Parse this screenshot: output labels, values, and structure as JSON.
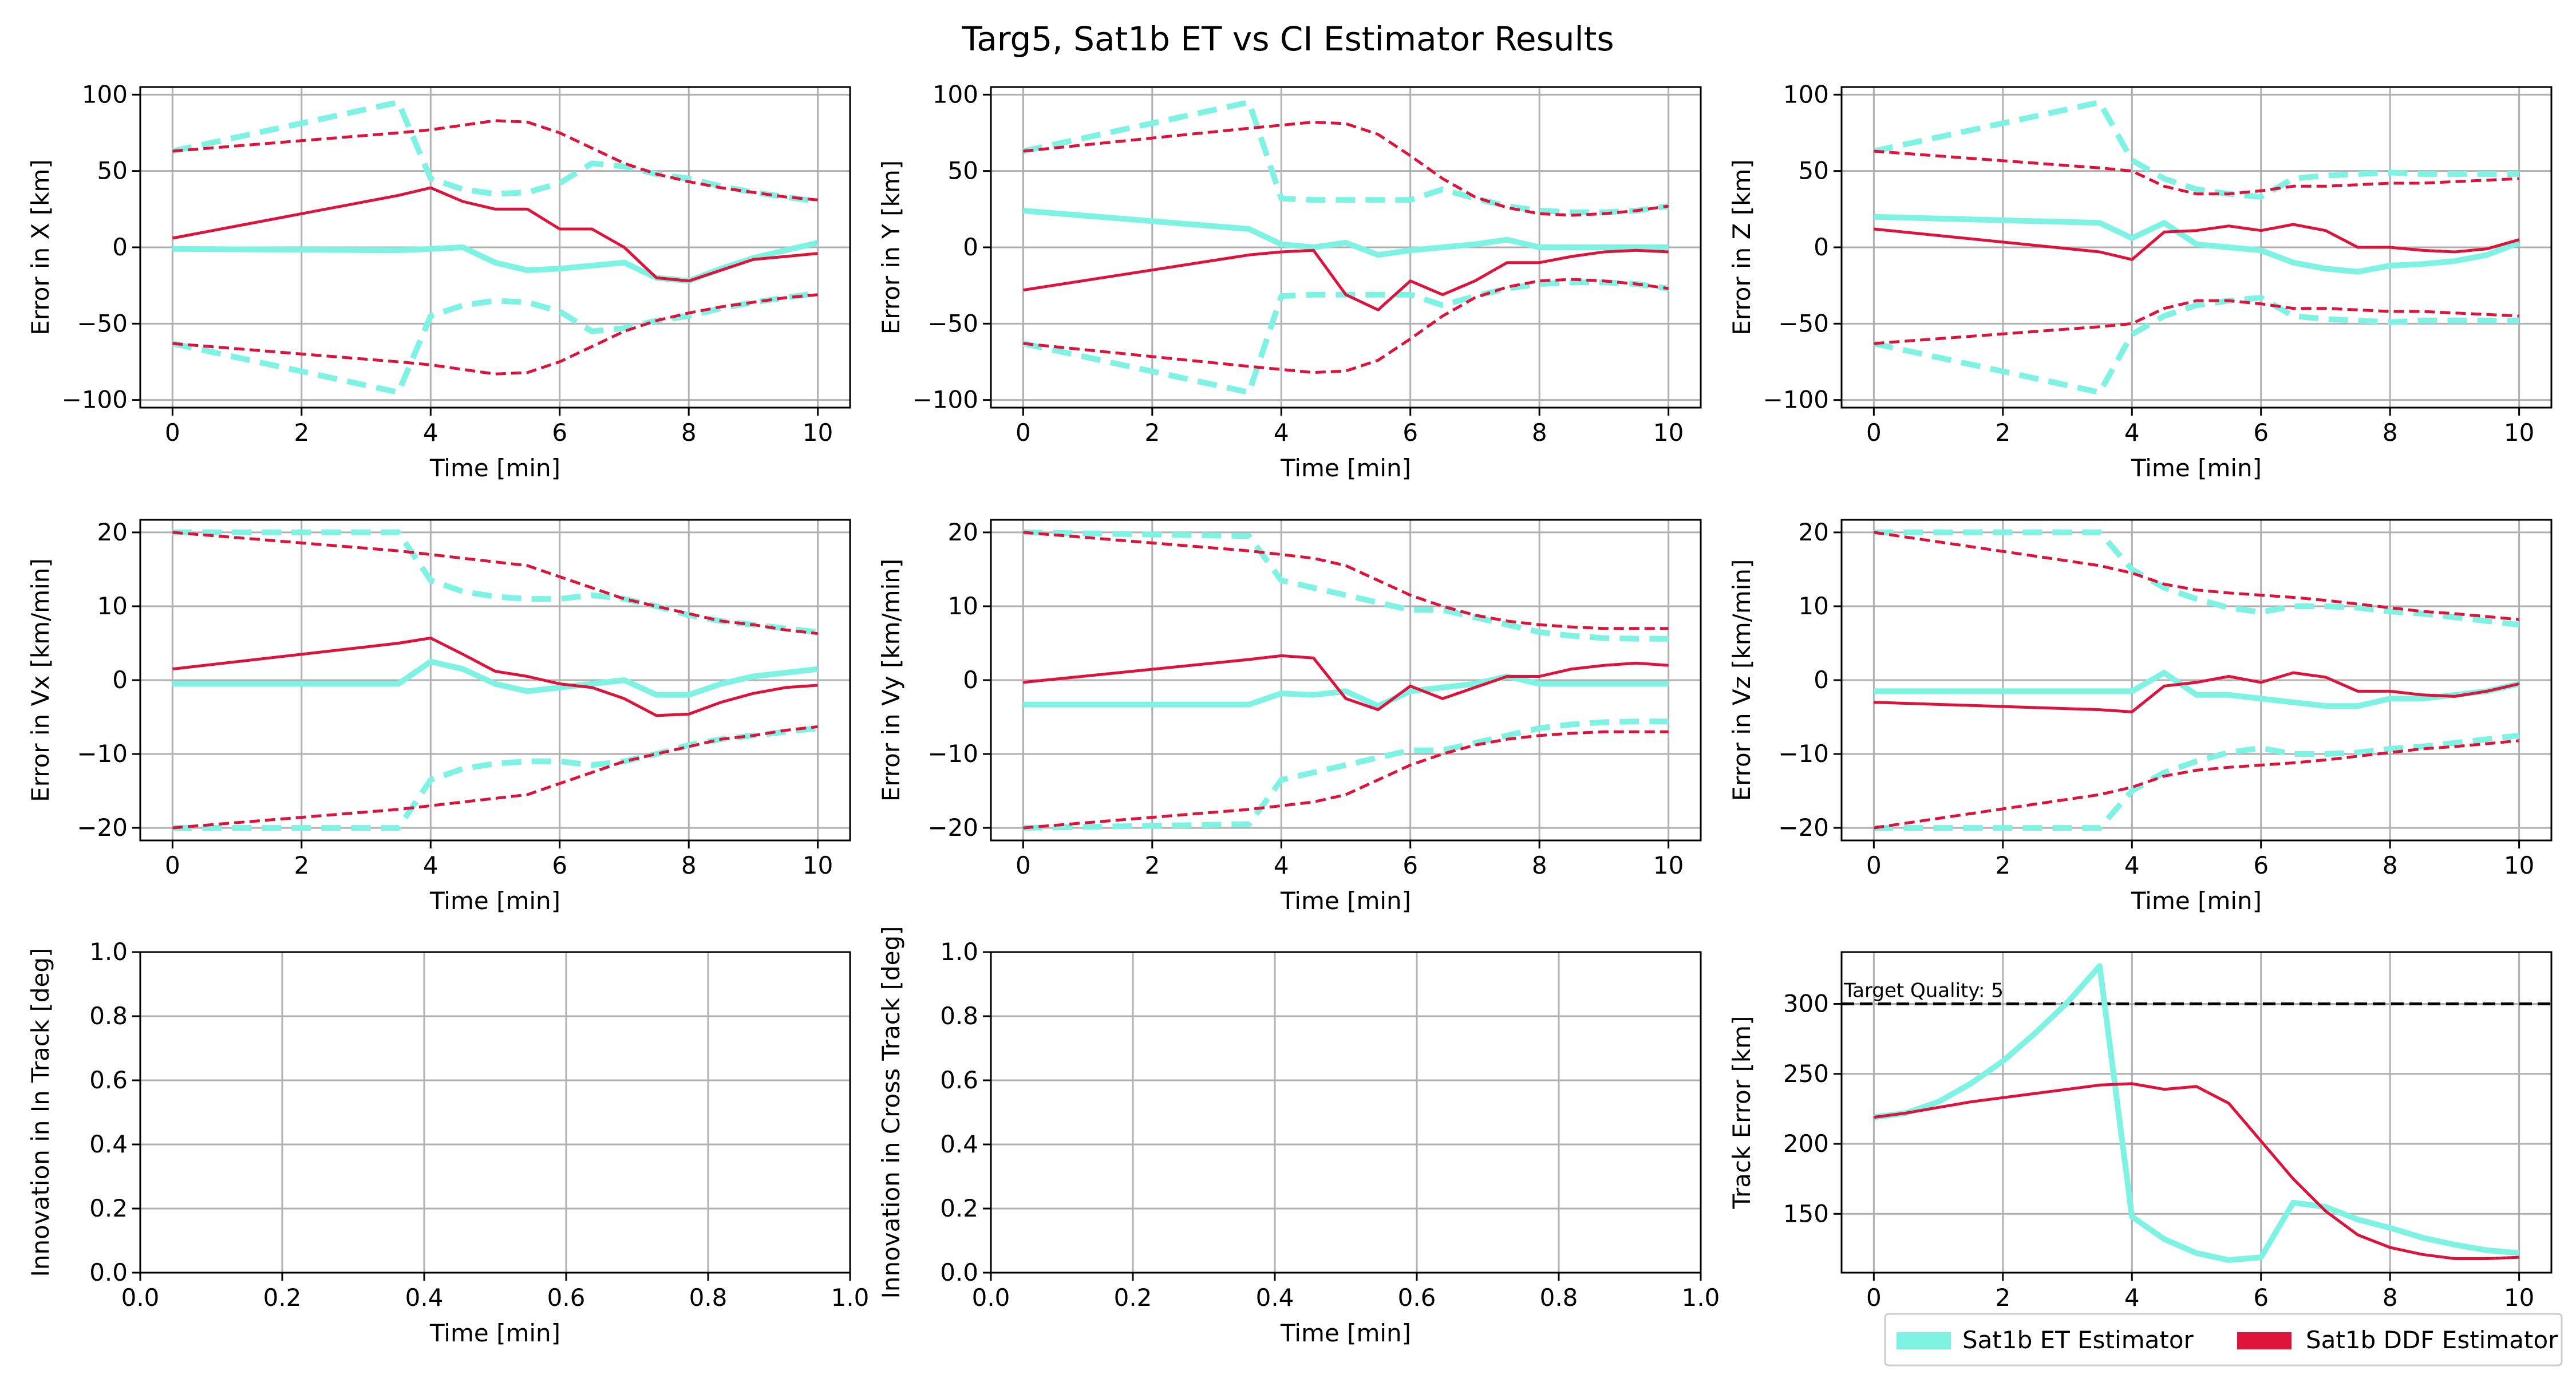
{
  "figure": {
    "title": "Targ5, Sat1b ET vs CI Estimator Results",
    "colors": {
      "et": "#7FF3E3",
      "ddf": "#DC143C",
      "grid": "#b0b0b0",
      "ref": "#000000"
    },
    "legend": {
      "placement": "bottom-right",
      "entries": [
        {
          "label": "Sat1b ET Estimator",
          "color": "#7FF3E3"
        },
        {
          "label": "Sat1b DDF Estimator",
          "color": "#DC143C"
        }
      ]
    }
  },
  "chart_data": [
    {
      "type": "line",
      "xlabel": "Time [min]",
      "ylabel": "Error in X [km]",
      "xlim": [
        -0.5,
        10.5
      ],
      "ylim": [
        -105,
        105
      ],
      "xticks": [
        0,
        2,
        4,
        6,
        8,
        10
      ],
      "yticks": [
        -100,
        -50,
        0,
        50,
        100
      ],
      "grid": true,
      "x": [
        0,
        3.5,
        4,
        4.5,
        5,
        5.5,
        6,
        6.5,
        7,
        7.5,
        8,
        8.5,
        9,
        9.5,
        10
      ],
      "series": [
        {
          "name": "Sat1b ET Estimator",
          "role": "error",
          "values": [
            -1,
            -2,
            -1,
            0,
            -10,
            -15,
            -14,
            -12,
            -10,
            -20,
            -22,
            -14,
            -7,
            -2,
            3
          ]
        },
        {
          "name": "Sat1b ET Estimator",
          "role": "bound",
          "values": [
            63,
            95,
            45,
            38,
            35,
            36,
            42,
            55,
            53,
            48,
            45,
            40,
            36,
            33,
            30
          ]
        },
        {
          "name": "Sat1b DDF Estimator",
          "role": "error",
          "values": [
            6,
            34,
            39,
            30,
            25,
            25,
            12,
            12,
            0,
            -20,
            -22,
            -15,
            -8,
            -6,
            -4
          ]
        },
        {
          "name": "Sat1b DDF Estimator",
          "role": "bound",
          "values": [
            63,
            75,
            77,
            80,
            83,
            82,
            75,
            65,
            55,
            48,
            43,
            39,
            36,
            33,
            31
          ]
        }
      ]
    },
    {
      "type": "line",
      "xlabel": "Time [min]",
      "ylabel": "Error in Y [km]",
      "xlim": [
        -0.5,
        10.5
      ],
      "ylim": [
        -105,
        105
      ],
      "xticks": [
        0,
        2,
        4,
        6,
        8,
        10
      ],
      "yticks": [
        -100,
        -50,
        0,
        50,
        100
      ],
      "grid": true,
      "x": [
        0,
        3.5,
        4,
        4.5,
        5,
        5.5,
        6,
        6.5,
        7,
        7.5,
        8,
        8.5,
        9,
        9.5,
        10
      ],
      "series": [
        {
          "name": "Sat1b ET Estimator",
          "role": "error",
          "values": [
            24,
            12,
            2,
            0,
            3,
            -5,
            -2,
            0,
            2,
            5,
            0,
            0,
            0,
            0,
            0
          ]
        },
        {
          "name": "Sat1b ET Estimator",
          "role": "bound",
          "values": [
            63,
            95,
            32,
            31,
            31,
            31,
            31,
            38,
            32,
            27,
            24,
            23,
            23,
            24,
            27
          ]
        },
        {
          "name": "Sat1b DDF Estimator",
          "role": "error",
          "values": [
            -28,
            -5,
            -3,
            -2,
            -31,
            -41,
            -22,
            -31,
            -22,
            -10,
            -10,
            -6,
            -3,
            -2,
            -3
          ]
        },
        {
          "name": "Sat1b DDF Estimator",
          "role": "bound",
          "values": [
            63,
            78,
            80,
            82,
            81,
            74,
            60,
            45,
            33,
            26,
            22,
            21,
            22,
            24,
            27
          ]
        }
      ]
    },
    {
      "type": "line",
      "xlabel": "Time [min]",
      "ylabel": "Error in Z [km]",
      "xlim": [
        -0.5,
        10.5
      ],
      "ylim": [
        -105,
        105
      ],
      "xticks": [
        0,
        2,
        4,
        6,
        8,
        10
      ],
      "yticks": [
        -100,
        -50,
        0,
        50,
        100
      ],
      "grid": true,
      "x": [
        0,
        3.5,
        4,
        4.5,
        5,
        5.5,
        6,
        6.5,
        7,
        7.5,
        8,
        8.5,
        9,
        9.5,
        10
      ],
      "series": [
        {
          "name": "Sat1b ET Estimator",
          "role": "error",
          "values": [
            20,
            16,
            6,
            16,
            2,
            0,
            -2,
            -10,
            -14,
            -16,
            -12,
            -11,
            -9,
            -5,
            3
          ]
        },
        {
          "name": "Sat1b ET Estimator",
          "role": "bound",
          "values": [
            63,
            95,
            57,
            45,
            38,
            35,
            33,
            45,
            47,
            48,
            49,
            48,
            48,
            48,
            48
          ]
        },
        {
          "name": "Sat1b DDF Estimator",
          "role": "error",
          "values": [
            12,
            -3,
            -8,
            10,
            11,
            14,
            11,
            15,
            11,
            0,
            0,
            -2,
            -3,
            -1,
            5
          ]
        },
        {
          "name": "Sat1b DDF Estimator",
          "role": "bound",
          "values": [
            63,
            52,
            50,
            40,
            35,
            35,
            37,
            40,
            40,
            41,
            42,
            42,
            43,
            44,
            45
          ]
        }
      ]
    },
    {
      "type": "line",
      "xlabel": "Time [min]",
      "ylabel": "Error in Vx [km/min]",
      "xlim": [
        -0.5,
        10.5
      ],
      "ylim": [
        -21.7,
        21.7
      ],
      "xticks": [
        0,
        2,
        4,
        6,
        8,
        10
      ],
      "yticks": [
        -20,
        -10,
        0,
        10,
        20
      ],
      "grid": true,
      "x": [
        0,
        3.5,
        4,
        4.5,
        5,
        5.5,
        6,
        6.5,
        7,
        7.5,
        8,
        8.5,
        9,
        9.5,
        10
      ],
      "series": [
        {
          "name": "Sat1b ET Estimator",
          "role": "error",
          "values": [
            -0.5,
            -0.5,
            2.5,
            1.5,
            -0.5,
            -1.5,
            -1,
            -0.5,
            0,
            -2,
            -2,
            -0.5,
            0.5,
            1,
            1.5
          ]
        },
        {
          "name": "Sat1b ET Estimator",
          "role": "bound",
          "values": [
            20,
            20,
            13.5,
            12,
            11.3,
            11,
            11,
            11.5,
            11,
            10,
            8.8,
            8,
            7.5,
            7,
            6.5
          ]
        },
        {
          "name": "Sat1b DDF Estimator",
          "role": "error",
          "values": [
            1.5,
            5,
            5.7,
            3.5,
            1.2,
            0.5,
            -0.5,
            -1,
            -2.5,
            -4.8,
            -4.6,
            -3,
            -1.8,
            -1,
            -0.7
          ]
        },
        {
          "name": "Sat1b DDF Estimator",
          "role": "bound",
          "values": [
            20,
            17.5,
            17,
            16.5,
            16,
            15.5,
            14,
            12.5,
            11,
            10,
            9,
            8,
            7.5,
            6.8,
            6.3
          ]
        }
      ]
    },
    {
      "type": "line",
      "xlabel": "Time [min]",
      "ylabel": "Error in Vy [km/min]",
      "xlim": [
        -0.5,
        10.5
      ],
      "ylim": [
        -21.7,
        21.7
      ],
      "xticks": [
        0,
        2,
        4,
        6,
        8,
        10
      ],
      "yticks": [
        -20,
        -10,
        0,
        10,
        20
      ],
      "grid": true,
      "x": [
        0,
        3.5,
        4,
        4.5,
        5,
        5.5,
        6,
        6.5,
        7,
        7.5,
        8,
        8.5,
        9,
        9.5,
        10
      ],
      "series": [
        {
          "name": "Sat1b ET Estimator",
          "role": "error",
          "values": [
            -3.3,
            -3.3,
            -1.8,
            -2,
            -1.5,
            -3.5,
            -1.5,
            -1,
            -0.5,
            0.5,
            -0.5,
            -0.5,
            -0.5,
            -0.5,
            -0.5
          ]
        },
        {
          "name": "Sat1b ET Estimator",
          "role": "bound",
          "values": [
            20,
            19.5,
            13.5,
            12.5,
            11.5,
            10.5,
            9.5,
            9.5,
            8.5,
            7.5,
            6.5,
            6,
            5.7,
            5.6,
            5.6
          ]
        },
        {
          "name": "Sat1b DDF Estimator",
          "role": "error",
          "values": [
            -0.3,
            2.8,
            3.3,
            3,
            -2.5,
            -4,
            -0.8,
            -2.5,
            -1,
            0.5,
            0.5,
            1.5,
            2,
            2.3,
            2
          ]
        },
        {
          "name": "Sat1b DDF Estimator",
          "role": "bound",
          "values": [
            20,
            17.5,
            17,
            16.5,
            15.5,
            13.5,
            11.5,
            10,
            8.8,
            8,
            7.5,
            7.2,
            7,
            7,
            7
          ]
        }
      ]
    },
    {
      "type": "line",
      "xlabel": "Time [min]",
      "ylabel": "Error in Vz [km/min]",
      "xlim": [
        -0.5,
        10.5
      ],
      "ylim": [
        -21.7,
        21.7
      ],
      "xticks": [
        0,
        2,
        4,
        6,
        8,
        10
      ],
      "yticks": [
        -20,
        -10,
        0,
        10,
        20
      ],
      "grid": true,
      "x": [
        0,
        3.5,
        4,
        4.5,
        5,
        5.5,
        6,
        6.5,
        7,
        7.5,
        8,
        8.5,
        9,
        9.5,
        10
      ],
      "series": [
        {
          "name": "Sat1b ET Estimator",
          "role": "error",
          "values": [
            -1.5,
            -1.5,
            -1.5,
            1,
            -2,
            -2,
            -2.5,
            -3,
            -3.5,
            -3.5,
            -2.5,
            -2.5,
            -2,
            -1.5,
            -0.5
          ]
        },
        {
          "name": "Sat1b ET Estimator",
          "role": "bound",
          "values": [
            20,
            20,
            15,
            12.5,
            11,
            9.8,
            9.2,
            10,
            10,
            9.8,
            9.3,
            9,
            8.5,
            8,
            7.5
          ]
        },
        {
          "name": "Sat1b DDF Estimator",
          "role": "error",
          "values": [
            -3,
            -4,
            -4.3,
            -0.8,
            -0.3,
            0.5,
            -0.3,
            1,
            0.4,
            -1.5,
            -1.5,
            -2,
            -2.2,
            -1.5,
            -0.5
          ]
        },
        {
          "name": "Sat1b DDF Estimator",
          "role": "bound",
          "values": [
            20,
            15.5,
            14.5,
            13,
            12.2,
            11.8,
            11.5,
            11.2,
            10.8,
            10.3,
            9.8,
            9.3,
            9,
            8.6,
            8.2
          ]
        }
      ]
    },
    {
      "type": "line",
      "xlabel": "Time [min]",
      "ylabel": "Innovation in In Track [deg]",
      "xlim": [
        0,
        1
      ],
      "ylim": [
        0,
        1
      ],
      "xticks": [
        0.0,
        0.2,
        0.4,
        0.6,
        0.8,
        1.0
      ],
      "yticks": [
        0.0,
        0.2,
        0.4,
        0.6,
        0.8,
        1.0
      ],
      "xticklabels": [
        "0.0",
        "0.2",
        "0.4",
        "0.6",
        "0.8",
        "1.0"
      ],
      "yticklabels": [
        "0.0",
        "0.2",
        "0.4",
        "0.6",
        "0.8",
        "1.0"
      ],
      "grid": true,
      "series": []
    },
    {
      "type": "line",
      "xlabel": "Time [min]",
      "ylabel": "Innovation in Cross Track [deg]",
      "xlim": [
        0,
        1
      ],
      "ylim": [
        0,
        1
      ],
      "xticks": [
        0.0,
        0.2,
        0.4,
        0.6,
        0.8,
        1.0
      ],
      "yticks": [
        0.0,
        0.2,
        0.4,
        0.6,
        0.8,
        1.0
      ],
      "xticklabels": [
        "0.0",
        "0.2",
        "0.4",
        "0.6",
        "0.8",
        "1.0"
      ],
      "yticklabels": [
        "0.0",
        "0.2",
        "0.4",
        "0.6",
        "0.8",
        "1.0"
      ],
      "grid": true,
      "series": []
    },
    {
      "type": "line",
      "xlabel": "Time [min]",
      "ylabel": "Track Error [km]",
      "xlim": [
        -0.5,
        10.5
      ],
      "ylim": [
        108,
        337
      ],
      "xticks": [
        0,
        2,
        4,
        6,
        8,
        10
      ],
      "yticks": [
        150,
        200,
        250,
        300
      ],
      "grid": true,
      "reference_line": {
        "y": 300,
        "style": "dashed",
        "label": "Target Quality: 5"
      },
      "x": [
        0,
        0.5,
        1,
        1.5,
        2,
        2.5,
        3,
        3.5,
        4,
        4.5,
        5,
        5.5,
        6,
        6.5,
        7,
        7.5,
        8,
        8.5,
        9,
        9.5,
        10
      ],
      "series": [
        {
          "name": "Sat1b ET Estimator",
          "role": "track",
          "values": [
            219,
            222,
            230,
            243,
            259,
            279,
            301,
            327,
            148,
            132,
            122,
            117,
            119,
            158,
            155,
            146,
            140,
            133,
            128,
            124,
            122
          ]
        },
        {
          "name": "Sat1b DDF Estimator",
          "role": "track",
          "values": [
            219,
            222,
            226,
            230,
            233,
            236,
            239,
            242,
            243,
            239,
            241,
            229,
            202,
            175,
            152,
            135,
            126,
            121,
            118,
            118,
            119
          ]
        }
      ]
    }
  ]
}
